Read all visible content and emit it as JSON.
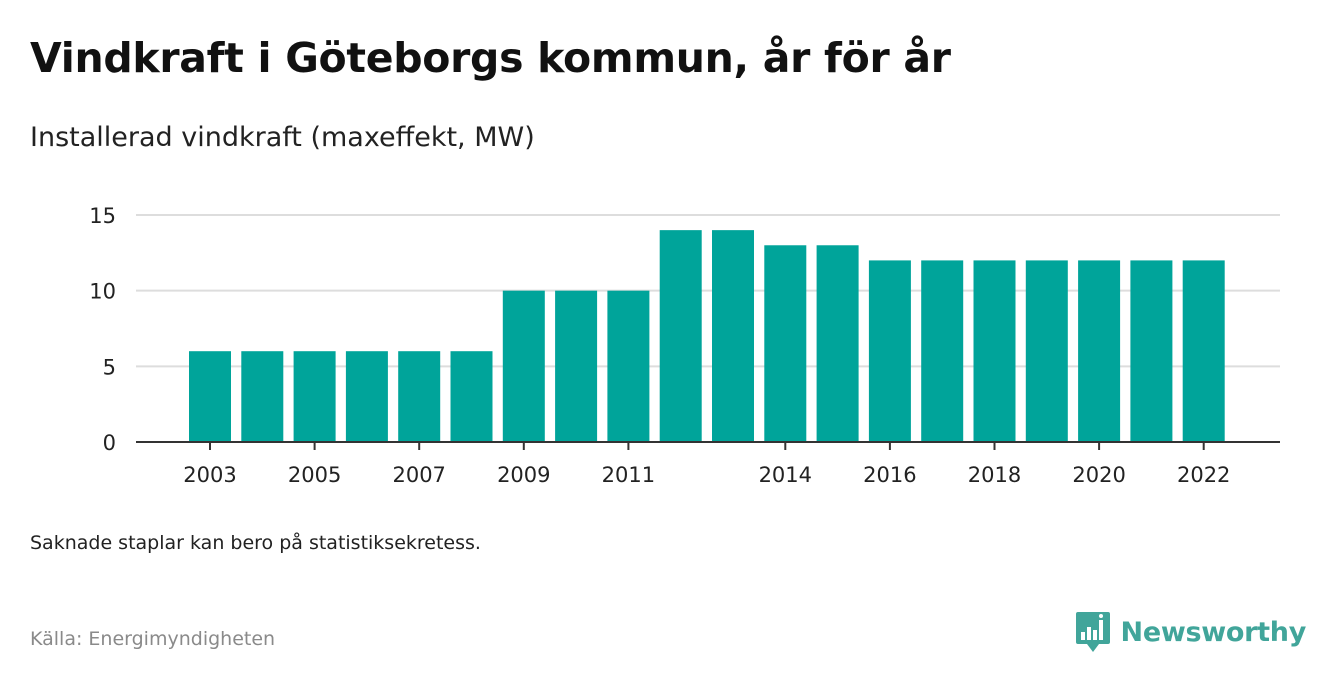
{
  "header": {
    "title": "Vindkraft i Göteborgs kommun, år för år",
    "subtitle": "Installerad vindkraft (maxeffekt, MW)"
  },
  "footer": {
    "note": "Saknade staplar kan bero på statistiksekretess.",
    "source": "Källa: Energimyndigheten",
    "brand": "Newsworthy",
    "brand_icon": "newsworthy-logo-icon"
  },
  "colors": {
    "bar": "#00a49a",
    "grid": "#dddddd",
    "axis": "#333333",
    "brand": "#41a59a"
  },
  "chart_data": {
    "type": "bar",
    "categories": [
      "2003",
      "2004",
      "2005",
      "2006",
      "2007",
      "2008",
      "2009",
      "2010",
      "2011",
      "2012",
      "2013",
      "2014",
      "2015",
      "2016",
      "2017",
      "2018",
      "2019",
      "2020",
      "2021",
      "2022"
    ],
    "x_tick_labels": [
      "2003",
      "2005",
      "2007",
      "2009",
      "2011",
      "2014",
      "2016",
      "2018",
      "2020",
      "2022"
    ],
    "values": [
      6,
      6,
      6,
      6,
      6,
      6,
      10,
      10,
      10,
      14,
      14,
      13,
      13,
      12,
      12,
      12,
      12,
      12,
      12,
      12
    ],
    "title": "Vindkraft i Göteborgs kommun, år för år",
    "subtitle": "Installerad vindkraft (maxeffekt, MW)",
    "xlabel": "",
    "ylabel": "",
    "ylim": [
      0,
      15
    ],
    "yticks": [
      0,
      5,
      10,
      15
    ],
    "grid": true,
    "legend": "none"
  }
}
